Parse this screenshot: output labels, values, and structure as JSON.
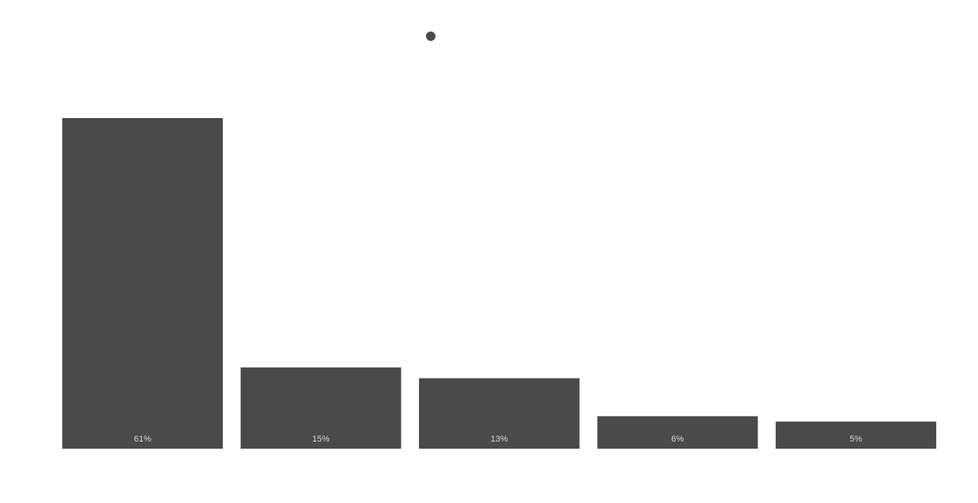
{
  "chart_data": {
    "type": "bar",
    "categories": [
      null,
      null,
      null,
      null,
      null
    ],
    "values": [
      61,
      15,
      13,
      6,
      5
    ],
    "value_labels": [
      "61%",
      "15%",
      "13%",
      "6%",
      "5%"
    ],
    "color": "#4a4a4a",
    "ylim": [
      0,
      61
    ]
  }
}
